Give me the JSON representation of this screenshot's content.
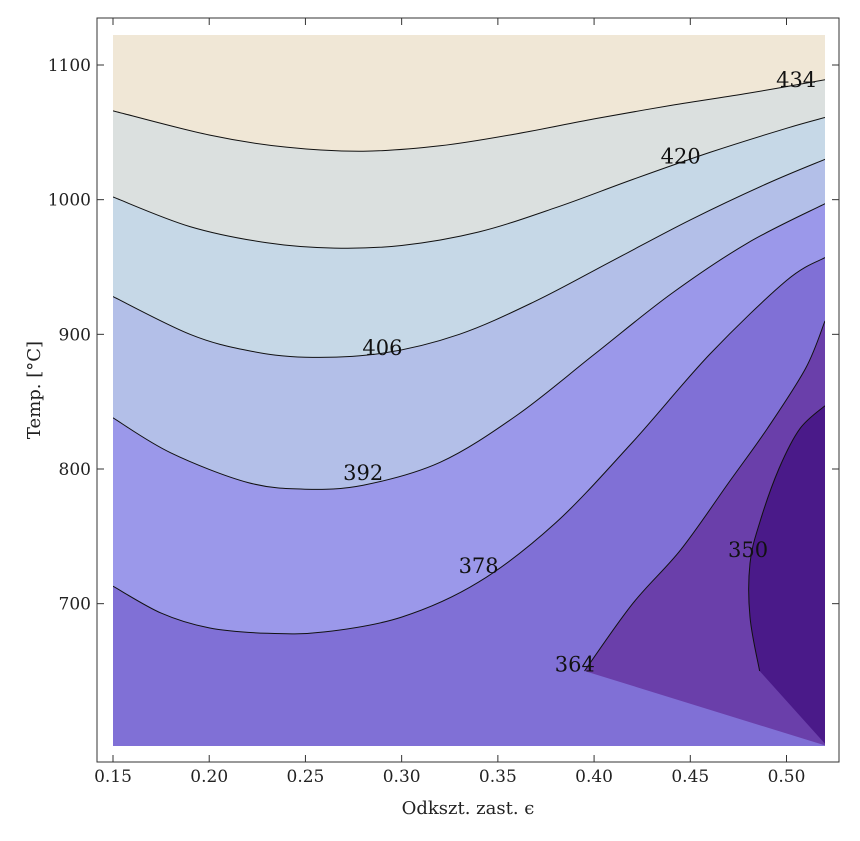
{
  "chart_data": {
    "type": "contour",
    "xlabel": "Odkszt. zast. ϵ",
    "ylabel": "Temp. [°C]",
    "xlim": [
      0.15,
      0.52
    ],
    "ylim": [
      650,
      1120
    ],
    "x_ticks": [
      "0.15",
      "0.20",
      "0.25",
      "0.30",
      "0.35",
      "0.40",
      "0.45",
      "0.50"
    ],
    "y_ticks": [
      "700",
      "800",
      "900",
      "1000",
      "1100"
    ],
    "contour_levels": [
      350,
      364,
      378,
      392,
      406,
      420,
      434
    ],
    "contour_labels": [
      {
        "text": "434",
        "x": 0.505,
        "y": 1089
      },
      {
        "text": "420",
        "x": 0.445,
        "y": 1032
      },
      {
        "text": "406",
        "x": 0.29,
        "y": 890
      },
      {
        "text": "392",
        "x": 0.28,
        "y": 797
      },
      {
        "text": "378",
        "x": 0.34,
        "y": 728
      },
      {
        "text": "364",
        "x": 0.39,
        "y": 655
      },
      {
        "text": "350",
        "x": 0.48,
        "y": 740
      }
    ],
    "contours": [
      {
        "level": 350,
        "x": [
          0.486,
          0.481,
          0.481,
          0.486,
          0.496,
          0.507,
          0.52
        ],
        "y": [
          650,
          690,
          730,
          760,
          800,
          830,
          847
        ]
      },
      {
        "level": 364,
        "x": [
          0.395,
          0.42,
          0.445,
          0.47,
          0.49,
          0.51,
          0.52
        ],
        "y": [
          650,
          700,
          740,
          790,
          830,
          875,
          910
        ]
      },
      {
        "level": 378,
        "x": [
          0.15,
          0.175,
          0.2,
          0.23,
          0.26,
          0.3,
          0.34,
          0.38,
          0.42,
          0.46,
          0.5,
          0.52
        ],
        "y": [
          713,
          693,
          682,
          678,
          679,
          690,
          716,
          760,
          820,
          885,
          940,
          957
        ]
      },
      {
        "level": 392,
        "x": [
          0.15,
          0.18,
          0.22,
          0.25,
          0.28,
          0.32,
          0.36,
          0.4,
          0.44,
          0.48,
          0.52
        ],
        "y": [
          838,
          812,
          790,
          785,
          788,
          805,
          840,
          885,
          930,
          968,
          997
        ]
      },
      {
        "level": 406,
        "x": [
          0.15,
          0.19,
          0.22,
          0.25,
          0.29,
          0.33,
          0.37,
          0.41,
          0.45,
          0.49,
          0.52
        ],
        "y": [
          928,
          900,
          888,
          883,
          886,
          900,
          925,
          955,
          985,
          1012,
          1030
        ]
      },
      {
        "level": 420,
        "x": [
          0.15,
          0.19,
          0.23,
          0.265,
          0.3,
          0.34,
          0.38,
          0.42,
          0.46,
          0.5,
          0.52
        ],
        "y": [
          1002,
          980,
          968,
          964,
          966,
          976,
          994,
          1015,
          1035,
          1053,
          1061
        ]
      },
      {
        "level": 434,
        "x": [
          0.15,
          0.2,
          0.24,
          0.28,
          0.32,
          0.36,
          0.4,
          0.44,
          0.48,
          0.52
        ],
        "y": [
          1066,
          1048,
          1039,
          1036,
          1040,
          1049,
          1060,
          1070,
          1079,
          1089
        ]
      }
    ],
    "fill_colors": {
      "above_434": "#f0e7d6",
      "420_434": "#dbe0df",
      "406_420": "#c6d8e7",
      "392_406": "#b3bfe8",
      "378_392": "#9b98ea",
      "364_378": "#8070d6",
      "350_364": "#6a3faa",
      "below_350": "#4a1a89"
    },
    "grid": false,
    "legend": "none"
  }
}
